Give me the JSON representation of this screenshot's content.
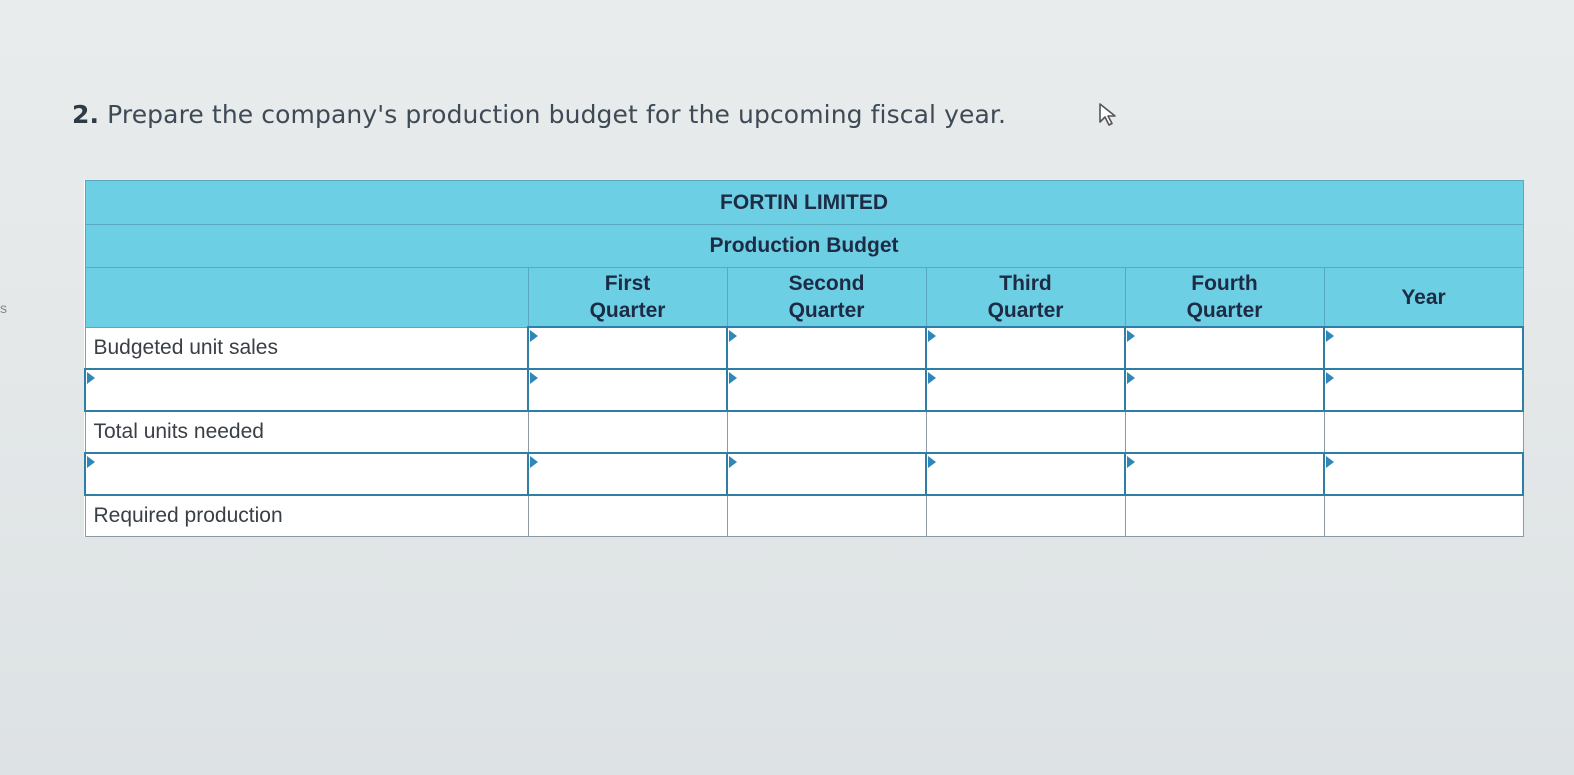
{
  "question": {
    "number": "2.",
    "text": "Prepare the company's production budget for the upcoming fiscal year."
  },
  "table": {
    "company": "FORTIN LIMITED",
    "title": "Production Budget",
    "columns": [
      {
        "line1": "First",
        "line2": "Quarter"
      },
      {
        "line1": "Second",
        "line2": "Quarter"
      },
      {
        "line1": "Third",
        "line2": "Quarter"
      },
      {
        "line1": "Fourth",
        "line2": "Quarter"
      },
      {
        "line1": "Year",
        "line2": ""
      }
    ],
    "rows": [
      {
        "label": "Budgeted unit sales",
        "label_input": false,
        "cells_input": true,
        "values": [
          "",
          "",
          "",
          "",
          ""
        ]
      },
      {
        "label": "",
        "label_input": true,
        "cells_input": true,
        "values": [
          "",
          "",
          "",
          "",
          ""
        ]
      },
      {
        "label": "Total units needed",
        "label_input": false,
        "cells_input": false,
        "values": [
          "",
          "",
          "",
          "",
          ""
        ]
      },
      {
        "label": "",
        "label_input": true,
        "cells_input": true,
        "values": [
          "",
          "",
          "",
          "",
          ""
        ]
      },
      {
        "label": "Required production",
        "label_input": false,
        "cells_input": false,
        "values": [
          "",
          "",
          "",
          "",
          ""
        ]
      }
    ]
  },
  "colors": {
    "header_bg": "#6dcfe3",
    "input_border": "#2f7ea6"
  },
  "icons": {
    "cursor": "mouse-pointer-icon"
  }
}
